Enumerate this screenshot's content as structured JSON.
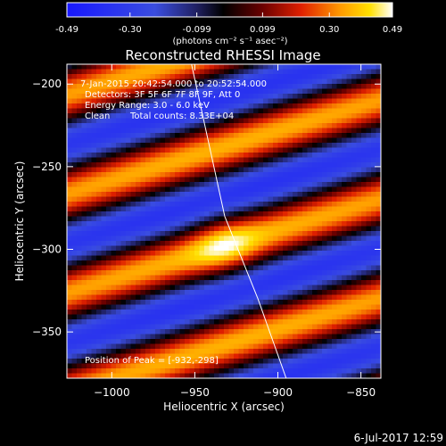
{
  "colorbar": {
    "tick_labels": [
      "-0.49",
      "-0.30",
      "-0.099",
      "0.099",
      "0.30",
      "0.49"
    ],
    "tick_values": [
      -0.49,
      -0.3,
      -0.099,
      0.099,
      0.3,
      0.49
    ],
    "range": [
      -0.49,
      0.49
    ],
    "unit_label": "(photons cm⁻² s⁻¹ asec⁻²)",
    "colormap": "blue-black-red-yellow-white"
  },
  "image_info": {
    "time_range": "7-Jan-2015 20:42:54.000 to 20:52:54.000",
    "detectors": "Detectors: 3F 5F 6F 7F 8F 9F, Att 0",
    "energy_range": "Energy Range: 3.0 - 6.0 keV",
    "method": "Clean",
    "total_counts": "Total counts: 8.33E+04",
    "peak_position": "Position of Peak = [-932,-298]"
  },
  "footer": {
    "timestamp": "6-Jul-2017 12:59"
  },
  "chart_data": {
    "type": "heatmap",
    "title": "Reconstructed RHESSI Image",
    "xlabel": "Heliocentric X (arcsec)",
    "ylabel": "Heliocentric Y (arcsec)",
    "xlim": [
      -1027,
      -838
    ],
    "ylim": [
      -378,
      -188
    ],
    "x_ticks": [
      -1000,
      -950,
      -900,
      -850
    ],
    "x_tick_labels": [
      "−1000",
      "−950",
      "−900",
      "−850"
    ],
    "y_ticks": [
      -200,
      -250,
      -300,
      -350
    ],
    "y_tick_labels": [
      "−200",
      "−250",
      "−300",
      "−350"
    ],
    "peak": [
      -932,
      -298
    ],
    "fringe_slope": 0.3,
    "fringe_period_arcsec": 60,
    "solar_limb": [
      [
        -952,
        -188
      ],
      [
        -932,
        -280
      ],
      [
        -912,
        -330
      ],
      [
        -895,
        -378
      ]
    ]
  }
}
